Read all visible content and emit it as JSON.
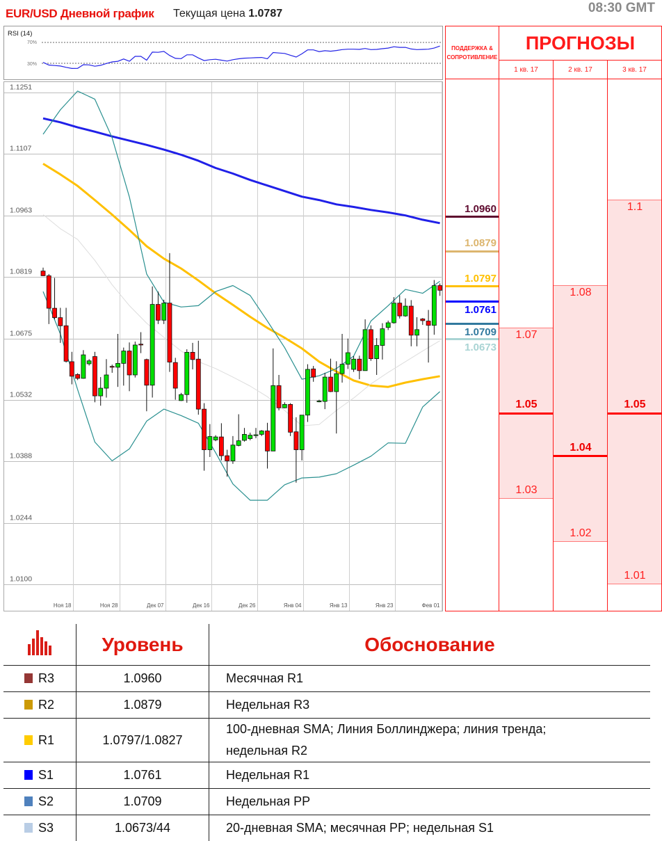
{
  "header": {
    "title": "EUR/USD Дневной график",
    "price_label": "Текущая цена ",
    "price_value": "1.0787",
    "time": "08:30 GMT"
  },
  "chart_data": {
    "type": "candlestick",
    "ylim": [
      1.004,
      1.1275
    ],
    "grid": true,
    "y_ticks": [
      "1.1251",
      "1.1107",
      "1.0963",
      "1.0819",
      "1.0675",
      "1.0532",
      "1.0388",
      "1.0244",
      "1.0100"
    ],
    "x_ticks": [
      {
        "label": "Ноя 18",
        "date": "11-18"
      },
      {
        "label": "Ноя 28",
        "date": "11-28"
      },
      {
        "label": "Дек 07",
        "date": "12-07"
      },
      {
        "label": "Дек 16",
        "date": "12-16"
      },
      {
        "label": "Дек 26",
        "date": "12-26"
      },
      {
        "label": "Янв 04",
        "date": "01-04"
      },
      {
        "label": "Янв 13",
        "date": "01-13"
      },
      {
        "label": "Янв 23",
        "date": "01-23"
      },
      {
        "label": "Фев 01",
        "date": "02-01"
      }
    ],
    "up_color": "#00e000",
    "down_color": "#ff0000",
    "dates": [
      "11-13",
      "11-14",
      "11-15",
      "11-16",
      "11-17",
      "11-18",
      "11-20",
      "11-21",
      "11-22",
      "11-23",
      "11-24",
      "11-25",
      "11-27",
      "11-28",
      "11-29",
      "11-30",
      "12-01",
      "12-02",
      "12-04",
      "12-05",
      "12-06",
      "12-07",
      "12-08",
      "12-09",
      "12-11",
      "12-12",
      "12-13",
      "12-14",
      "12-15",
      "12-16",
      "12-18",
      "12-19",
      "12-20",
      "12-21",
      "12-22",
      "12-23",
      "12-25",
      "12-26",
      "12-27",
      "12-28",
      "12-29",
      "12-30",
      "01-01",
      "01-02",
      "01-03",
      "01-04",
      "01-05",
      "01-06",
      "01-08",
      "01-09",
      "01-10",
      "01-11",
      "01-12",
      "01-13",
      "01-15",
      "01-16",
      "01-17",
      "01-18",
      "01-19",
      "01-20",
      "01-22",
      "01-23",
      "01-24",
      "01-25",
      "01-26",
      "01-27",
      "01-29",
      "01-30",
      "01-31",
      "02-01"
    ],
    "ohlc": [
      [
        1.0833,
        1.0841,
        1.0821,
        1.0822
      ],
      [
        1.0822,
        1.0826,
        1.0709,
        1.0746
      ],
      [
        1.0746,
        1.0817,
        1.072,
        1.0724
      ],
      [
        1.0724,
        1.0747,
        1.0665,
        1.0705
      ],
      [
        1.0705,
        1.0747,
        1.0619,
        1.0622
      ],
      [
        1.0621,
        1.0644,
        1.0568,
        1.0587
      ],
      [
        1.0591,
        1.0594,
        1.0578,
        1.0582
      ],
      [
        1.0582,
        1.0648,
        1.0581,
        1.0637
      ],
      [
        1.0616,
        1.0627,
        1.0612,
        1.0623
      ],
      [
        1.0633,
        1.0644,
        1.0526,
        1.0541
      ],
      [
        1.0541,
        1.0585,
        1.0518,
        1.0559
      ],
      [
        1.0559,
        1.0627,
        1.0537,
        1.059
      ],
      [
        1.061,
        1.0614,
        1.0595,
        1.0609
      ],
      [
        1.0608,
        1.0686,
        1.0562,
        1.0617
      ],
      [
        1.0617,
        1.0654,
        1.0565,
        1.0646
      ],
      [
        1.0646,
        1.0666,
        1.0552,
        1.059
      ],
      [
        1.059,
        1.0668,
        1.0584,
        1.066
      ],
      [
        1.0662,
        1.069,
        1.0641,
        1.0661
      ],
      [
        1.0626,
        1.0628,
        1.0505,
        1.0566
      ],
      [
        1.0566,
        1.0797,
        1.0537,
        1.0755
      ],
      [
        1.0755,
        1.0785,
        1.0709,
        1.0718
      ],
      [
        1.0718,
        1.0766,
        1.0709,
        1.0758
      ],
      [
        1.0758,
        1.0875,
        1.0597,
        1.062
      ],
      [
        1.0619,
        1.063,
        1.0532,
        1.0559
      ],
      [
        1.053,
        1.0548,
        1.0529,
        1.0544
      ],
      [
        1.0544,
        1.065,
        1.0525,
        1.0643
      ],
      [
        1.0643,
        1.0665,
        1.0603,
        1.0626
      ],
      [
        1.0627,
        1.067,
        1.0497,
        1.051
      ],
      [
        1.051,
        1.0524,
        1.0366,
        1.0415
      ],
      [
        1.0415,
        1.0475,
        1.0398,
        1.0446
      ],
      [
        1.0438,
        1.0449,
        1.0435,
        1.0445
      ],
      [
        1.0445,
        1.0477,
        1.039,
        1.0401
      ],
      [
        1.0401,
        1.0415,
        1.0352,
        1.0389
      ],
      [
        1.0389,
        1.0447,
        1.0382,
        1.0426
      ],
      [
        1.0425,
        1.0498,
        1.0423,
        1.0436
      ],
      [
        1.0437,
        1.0466,
        1.0434,
        1.0451
      ],
      [
        1.0441,
        1.0455,
        1.0437,
        1.0449
      ],
      [
        1.045,
        1.0466,
        1.0442,
        1.045
      ],
      [
        1.0451,
        1.0461,
        1.0447,
        1.0459
      ],
      [
        1.0459,
        1.0478,
        1.0371,
        1.0412
      ],
      [
        1.0412,
        1.0652,
        1.0412,
        1.0565
      ],
      [
        1.0565,
        1.059,
        1.0507,
        1.0513
      ],
      [
        1.0513,
        1.0526,
        1.0512,
        1.0521
      ],
      [
        1.0521,
        1.0524,
        1.0447,
        1.0456
      ],
      [
        1.0457,
        1.0491,
        1.0338,
        1.0415
      ],
      [
        1.0415,
        1.0496,
        1.039,
        1.0496
      ],
      [
        1.0496,
        1.0615,
        1.048,
        1.0603
      ],
      [
        1.0604,
        1.0611,
        1.0574,
        1.0585
      ],
      [
        1.0529,
        1.0532,
        1.0526,
        1.0529
      ],
      [
        1.0528,
        1.0595,
        1.051,
        1.0585
      ],
      [
        1.0585,
        1.0628,
        1.055,
        1.0551
      ],
      [
        1.0551,
        1.0622,
        1.0453,
        1.0593
      ],
      [
        1.0593,
        1.0686,
        1.0572,
        1.0615
      ],
      [
        1.0615,
        1.0675,
        1.0604,
        1.0642
      ],
      [
        1.0603,
        1.0634,
        1.0597,
        1.0627
      ],
      [
        1.0627,
        1.0635,
        1.058,
        1.06
      ],
      [
        1.06,
        1.072,
        1.06,
        1.0696
      ],
      [
        1.0696,
        1.0706,
        1.0623,
        1.0628
      ],
      [
        1.0628,
        1.0676,
        1.059,
        1.0659
      ],
      [
        1.0659,
        1.0711,
        1.0626,
        1.0698
      ],
      [
        1.0701,
        1.0717,
        1.0695,
        1.0712
      ],
      [
        1.0712,
        1.0772,
        1.071,
        1.0758
      ],
      [
        1.0758,
        1.0776,
        1.0722,
        1.0728
      ],
      [
        1.0728,
        1.0769,
        1.0726,
        1.0751
      ],
      [
        1.0751,
        1.0765,
        1.0657,
        1.0683
      ],
      [
        1.0683,
        1.0725,
        1.0657,
        1.0696
      ],
      [
        1.0721,
        1.0723,
        1.0707,
        1.0717
      ],
      [
        1.0716,
        1.0742,
        1.0619,
        1.0706
      ],
      [
        1.0706,
        1.0812,
        1.0684,
        1.0799
      ],
      [
        1.0799,
        1.0804,
        1.0775,
        1.0788
      ]
    ],
    "indicator_dates": [
      "11-13",
      "11-16",
      "11-20",
      "11-23",
      "11-27",
      "11-30",
      "12-04",
      "12-07",
      "12-11",
      "12-14",
      "12-18",
      "12-21",
      "12-25",
      "12-28",
      "01-01",
      "01-04",
      "01-08",
      "01-11",
      "01-15",
      "01-18",
      "01-22",
      "01-25",
      "01-29",
      "02-01"
    ],
    "lines": [
      {
        "id": "sma-blue",
        "color": "#2020e8",
        "values": [
          1.119,
          1.1181,
          1.1169,
          1.1159,
          1.1148,
          1.1138,
          1.1128,
          1.1117,
          1.1105,
          1.1091,
          1.1074,
          1.1061,
          1.1046,
          1.1033,
          1.102,
          1.1007,
          1.0999,
          1.0989,
          1.0983,
          1.0976,
          1.097,
          1.0963,
          1.0953,
          1.0945
        ]
      },
      {
        "id": "sma-yellow",
        "color": "#ffc000",
        "values": [
          1.1084,
          1.1059,
          1.1032,
          1.0999,
          1.0965,
          1.0929,
          1.0891,
          1.0862,
          1.0839,
          1.0811,
          1.0781,
          1.0754,
          1.0726,
          1.07,
          1.0677,
          1.0652,
          1.0621,
          1.0598,
          1.0577,
          1.0565,
          1.0562,
          1.0572,
          1.058,
          1.0587
        ]
      },
      {
        "id": "bollinger-upper",
        "color": "#2a9090",
        "values": [
          1.1153,
          1.121,
          1.1254,
          1.1235,
          1.1145,
          1.1006,
          1.0826,
          1.076,
          1.0749,
          1.0752,
          1.0785,
          1.0799,
          1.0776,
          1.0716,
          1.0654,
          1.058,
          1.0588,
          1.0605,
          1.0634,
          1.0716,
          1.0752,
          1.079,
          1.0781,
          1.0809
        ]
      },
      {
        "id": "bollinger-middle",
        "color": "#dddddd",
        "values": [
          1.0965,
          1.0932,
          1.0907,
          1.0858,
          1.0801,
          1.0752,
          1.0711,
          1.0678,
          1.0646,
          1.0621,
          1.0605,
          1.0585,
          1.0564,
          1.0539,
          1.0507,
          1.0471,
          1.0474,
          1.0507,
          1.0536,
          1.0569,
          1.0596,
          1.0621,
          1.0646,
          1.067
        ]
      },
      {
        "id": "bollinger-lower",
        "color": "#2a9090",
        "values": [
          1.0785,
          1.0686,
          1.0556,
          1.0433,
          1.0389,
          1.0417,
          1.0482,
          1.051,
          1.0495,
          1.0477,
          1.0408,
          1.0335,
          1.0297,
          1.0297,
          1.0333,
          1.0349,
          1.0351,
          1.0359,
          1.0379,
          1.04,
          1.0431,
          1.043,
          1.0515,
          1.0551
        ]
      }
    ],
    "rsi": {
      "label": "RSI (14)",
      "color": "#2323e6",
      "levels": [
        {
          "label": "70%",
          "value": 70
        },
        {
          "label": "30%",
          "value": 30
        }
      ],
      "values": [
        31.7,
        26.6,
        25.7,
        24.8,
        22.3,
        20.1,
        20.3,
        27.4,
        27.0,
        24.4,
        26.1,
        29.6,
        32.6,
        33.9,
        38.2,
        33.9,
        43.3,
        43.3,
        36.0,
        51.5,
        51.1,
        52.8,
        45.1,
        39.5,
        39.0,
        46.3,
        46.3,
        40.3,
        35.2,
        36.9,
        37.7,
        36.0,
        34.3,
        36.9,
        38.6,
        39.9,
        40.3,
        40.8,
        41.2,
        38.6,
        50.6,
        49.8,
        48.9,
        45.5,
        42.0,
        48.1,
        55.8,
        55.8,
        52.4,
        54.1,
        53.2,
        54.5,
        56.2,
        57.1,
        57.1,
        56.7,
        58.4,
        56.2,
        56.7,
        58.0,
        59.2,
        61.8,
        60.5,
        60.5,
        57.5,
        56.2,
        56.7,
        57.1,
        59.2,
        63.1
      ]
    }
  },
  "right_panel": {
    "sr_header": "ПОДДЕРЖКА & СОПРОТИВЛЕНИЕ",
    "forecast_header": "ПРОГНОЗЫ",
    "levels": [
      {
        "value": "1.0960",
        "color": "#5e0a2e"
      },
      {
        "value": "1.0879",
        "color": "#dcb56e"
      },
      {
        "value": "1.0797",
        "color": "#ffc000"
      },
      {
        "value": "1.0761",
        "color": "#0000ff"
      },
      {
        "value": "1.0709",
        "color": "#31799e"
      },
      {
        "value": "1.0673",
        "color": "#a9d4d4"
      }
    ],
    "forecasts": [
      {
        "quarter": "1 кв. 17",
        "high": "1.07",
        "mid": "1.05",
        "low": "1.03"
      },
      {
        "quarter": "2 кв. 17",
        "high": "1.08",
        "mid": "1.04",
        "low": "1.02"
      },
      {
        "quarter": "3 кв. 17",
        "high": "1.1",
        "mid": "1.05",
        "low": "1.01"
      }
    ]
  },
  "levels_table": {
    "icon": "bar-chart-icon",
    "col_level": "Уровень",
    "col_reason": "Обоснование",
    "rows": [
      {
        "code": "R3",
        "color": "#953735",
        "level": "1.0960",
        "reason": "Месячная R1"
      },
      {
        "code": "R2",
        "color": "#cc9a06",
        "level": "1.0879",
        "reason": "Недельная R3"
      },
      {
        "code": "R1",
        "color": "#ffcc00",
        "level": "1.0797/1.0827",
        "reason": "100-дневная SMA; Линия Боллинджера; линия тренда; недельная R2"
      },
      {
        "code": "S1",
        "color": "#0000ff",
        "level": "1.0761",
        "reason": "Недельная R1"
      },
      {
        "code": "S2",
        "color": "#4f81bd",
        "level": "1.0709",
        "reason": "Недельная PP"
      },
      {
        "code": "S3",
        "color": "#b9cde5",
        "level": "1.0673/44",
        "reason": "20-дневная SMA; месячная PP; недельная S1"
      }
    ]
  }
}
